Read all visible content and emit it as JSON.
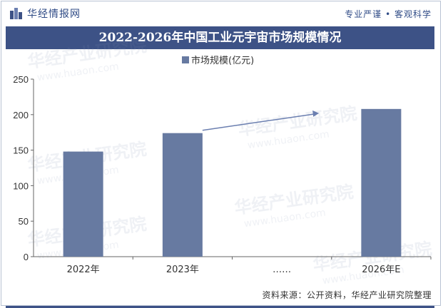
{
  "header": {
    "brand": "华经情报网",
    "slogan": "专业严谨 • 客观科学"
  },
  "title": "2022-2026年中国工业元宇宙市场规模情况",
  "source": "资料来源：公开资料，华经产业研究院整理",
  "watermark": "华经产业研究院",
  "watermark_url": "www.huaon.com",
  "colors": {
    "bar": "#677aa1",
    "title_bg": "#3d5286",
    "arrow": "#6b7fb0"
  },
  "chart_data": {
    "type": "bar",
    "categories": [
      "2022年",
      "2023年",
      "……",
      "2026年E"
    ],
    "series": [
      {
        "name": "市场规模(亿元)",
        "values": [
          148,
          174,
          null,
          208
        ]
      }
    ],
    "ylim": [
      0,
      250
    ],
    "yticks": [
      0,
      50,
      100,
      150,
      200,
      250
    ],
    "legend": "top-center",
    "grid": false,
    "annotation": "trend arrow from 2023年 toward 2026年E"
  }
}
